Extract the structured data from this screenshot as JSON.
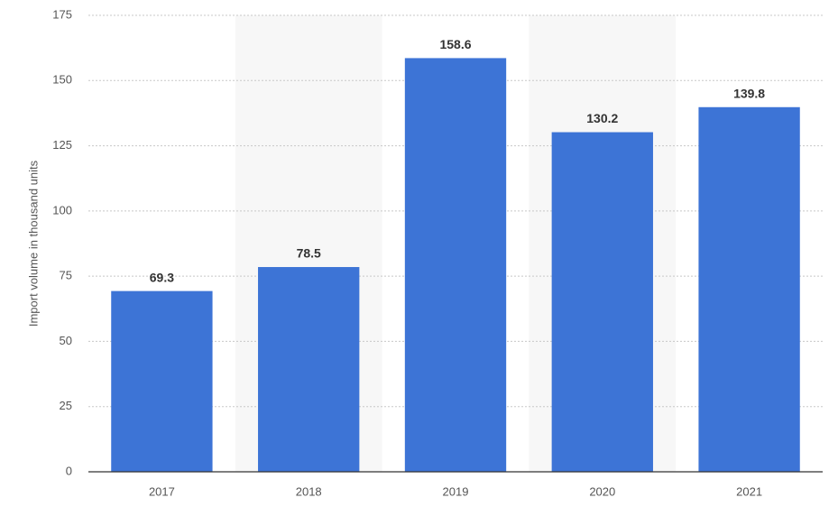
{
  "chart_data": {
    "type": "bar",
    "y_label": "Import volume in thousand units",
    "categories": [
      "2017",
      "2018",
      "2019",
      "2020",
      "2021"
    ],
    "values": [
      69.3,
      78.5,
      158.6,
      130.2,
      139.8
    ],
    "color": "#3d74d6",
    "ylim": [
      0,
      175
    ],
    "yticks": [
      0,
      25,
      50,
      75,
      100,
      125,
      150,
      175
    ],
    "grid": true
  }
}
